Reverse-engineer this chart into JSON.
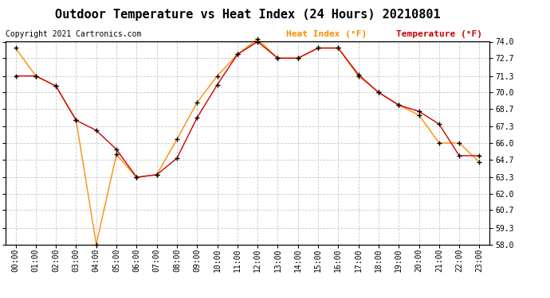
{
  "title": "Outdoor Temperature vs Heat Index (24 Hours) 20210801",
  "copyright_text": "Copyright 2021 Cartronics.com",
  "legend_heat_index": "Heat Index (°F)",
  "legend_temperature": "Temperature (°F)",
  "heat_index_color": "#ff8c00",
  "temperature_color": "#cc0000",
  "background_color": "#ffffff",
  "grid_color": "#c8c8c8",
  "ylim": [
    58.0,
    74.0
  ],
  "yticks": [
    58.0,
    59.3,
    60.7,
    62.0,
    63.3,
    64.7,
    66.0,
    67.3,
    68.7,
    70.0,
    71.3,
    72.7,
    74.0
  ],
  "hours": [
    "00:00",
    "01:00",
    "02:00",
    "03:00",
    "04:00",
    "05:00",
    "06:00",
    "07:00",
    "08:00",
    "09:00",
    "10:00",
    "11:00",
    "12:00",
    "13:00",
    "14:00",
    "15:00",
    "16:00",
    "17:00",
    "18:00",
    "19:00",
    "20:00",
    "21:00",
    "22:00",
    "23:00"
  ],
  "heat_index": [
    73.5,
    71.3,
    70.5,
    67.8,
    58.0,
    65.1,
    63.3,
    63.5,
    66.3,
    69.2,
    71.3,
    73.0,
    74.2,
    72.7,
    72.7,
    73.5,
    73.5,
    71.3,
    70.0,
    69.0,
    68.2,
    66.0,
    66.0,
    64.5
  ],
  "temperature": [
    71.3,
    71.3,
    70.5,
    67.8,
    67.0,
    65.5,
    63.3,
    63.5,
    64.8,
    68.0,
    70.6,
    73.0,
    74.0,
    72.7,
    72.7,
    73.5,
    73.5,
    71.4,
    70.0,
    69.0,
    68.5,
    67.5,
    65.0,
    65.0
  ],
  "title_fontsize": 11,
  "copyright_fontsize": 7,
  "legend_fontsize": 8,
  "tick_fontsize": 7,
  "marker": "+",
  "marker_color": "#000000",
  "marker_size": 5,
  "linewidth": 1.0
}
